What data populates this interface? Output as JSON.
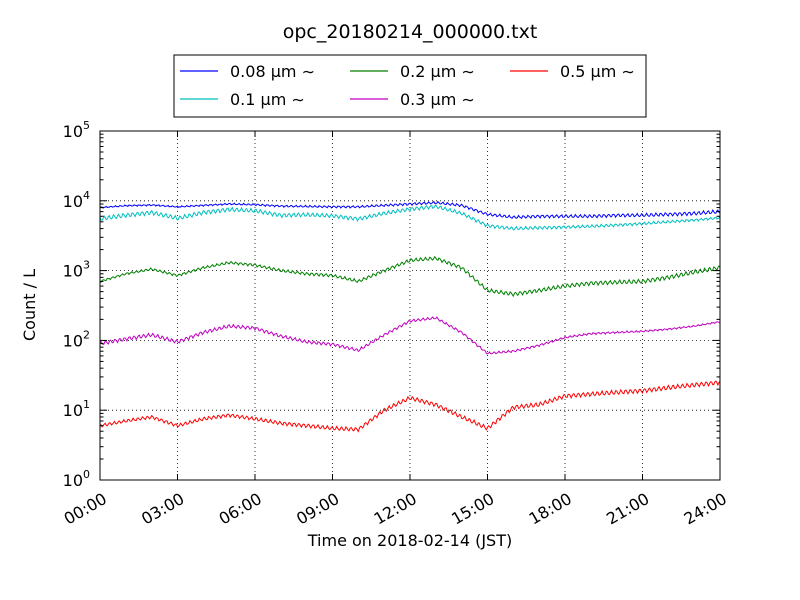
{
  "chart_data": {
    "type": "line",
    "title": "opc_20180214_000000.txt",
    "xlabel": "Time on 2018-02-14 (JST)",
    "ylabel": "Count / L",
    "yscale": "log",
    "xlim": [
      "00:00",
      "24:00"
    ],
    "ylim": [
      1,
      100000
    ],
    "grid": true,
    "legend_position": "top-center",
    "x_ticks": [
      "00:00",
      "03:00",
      "06:00",
      "09:00",
      "12:00",
      "15:00",
      "18:00",
      "21:00",
      "24:00"
    ],
    "y_ticks": [
      {
        "base": "10",
        "exp": "0"
      },
      {
        "base": "10",
        "exp": "1"
      },
      {
        "base": "10",
        "exp": "2"
      },
      {
        "base": "10",
        "exp": "3"
      },
      {
        "base": "10",
        "exp": "4"
      },
      {
        "base": "10",
        "exp": "5"
      }
    ],
    "x_hours": [
      0,
      1,
      2,
      3,
      4,
      5,
      6,
      7,
      8,
      9,
      10,
      11,
      12,
      13,
      14,
      15,
      16,
      17,
      18,
      19,
      20,
      21,
      22,
      23,
      24
    ],
    "series": [
      {
        "name": "0.08 μm ∼",
        "color": "#0000ff",
        "values": [
          8000,
          8500,
          8700,
          8200,
          8600,
          9000,
          8800,
          8400,
          8300,
          8200,
          8200,
          8600,
          9000,
          9400,
          8600,
          6400,
          5800,
          6000,
          6000,
          6000,
          6200,
          6200,
          6400,
          6600,
          7000
        ]
      },
      {
        "name": "0.1 μm ∼",
        "color": "#00bfbf",
        "values": [
          5500,
          6200,
          6800,
          5600,
          6800,
          7500,
          7200,
          6200,
          6300,
          6100,
          5500,
          6600,
          7600,
          8300,
          6600,
          4400,
          4000,
          4100,
          4200,
          4300,
          4500,
          4700,
          5000,
          5300,
          5700
        ]
      },
      {
        "name": "0.2 μm ∼",
        "color": "#008000",
        "values": [
          700,
          900,
          1050,
          850,
          1100,
          1300,
          1200,
          1000,
          900,
          850,
          700,
          1000,
          1400,
          1500,
          1100,
          520,
          460,
          520,
          600,
          660,
          680,
          700,
          800,
          950,
          1100
        ]
      },
      {
        "name": "0.3 μm ∼",
        "color": "#bf00bf",
        "values": [
          90,
          105,
          120,
          95,
          130,
          160,
          150,
          115,
          95,
          88,
          72,
          120,
          190,
          210,
          130,
          65,
          70,
          85,
          110,
          125,
          130,
          135,
          145,
          160,
          185
        ]
      },
      {
        "name": "0.5 μm ∼",
        "color": "#ff0000",
        "values": [
          6,
          7,
          8,
          6,
          7.5,
          8.5,
          7.5,
          6.5,
          6,
          5.5,
          5.3,
          10,
          15,
          12,
          8,
          5.5,
          11,
          12,
          16,
          17,
          18,
          19,
          21,
          23,
          25
        ]
      }
    ]
  }
}
